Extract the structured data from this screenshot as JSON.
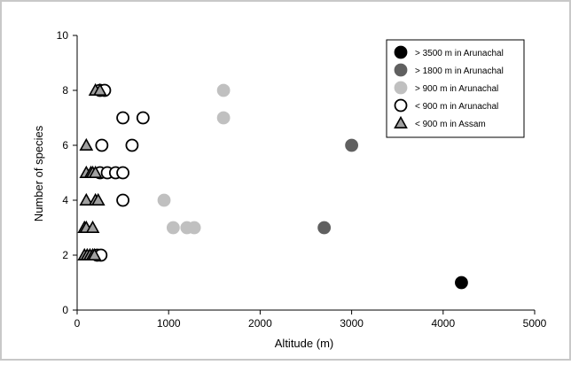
{
  "chart_data": {
    "type": "scatter",
    "title": "",
    "xlabel": "Altitude (m)",
    "ylabel": "Number of species",
    "xlim": [
      0,
      5000
    ],
    "ylim": [
      0,
      10
    ],
    "xticks": [
      0,
      1000,
      2000,
      3000,
      4000,
      5000
    ],
    "yticks": [
      0,
      2,
      4,
      6,
      8,
      10
    ],
    "grid": false,
    "legend_position": "top-right",
    "series": [
      {
        "name": "> 3500 m in Arunachal",
        "marker": "circle",
        "fill": "#000000",
        "stroke": "#000000",
        "points": [
          [
            4200,
            1
          ]
        ]
      },
      {
        "name": "> 1800 m in Arunachal",
        "marker": "circle",
        "fill": "#606060",
        "stroke": "#606060",
        "points": [
          [
            3000,
            6
          ],
          [
            2700,
            3
          ]
        ]
      },
      {
        "name": ">  900 m in Arunachal",
        "marker": "circle",
        "fill": "#c0c0c0",
        "stroke": "#c0c0c0",
        "points": [
          [
            1600,
            8
          ],
          [
            1600,
            7
          ],
          [
            950,
            4
          ],
          [
            1050,
            3
          ],
          [
            1200,
            3
          ],
          [
            1280,
            3
          ]
        ]
      },
      {
        "name": "<  900 m in Arunachal",
        "marker": "circle",
        "fill": "#ffffff",
        "stroke": "#000000",
        "points": [
          [
            250,
            8
          ],
          [
            300,
            8
          ],
          [
            500,
            7
          ],
          [
            720,
            7
          ],
          [
            600,
            6
          ],
          [
            270,
            6
          ],
          [
            250,
            5
          ],
          [
            330,
            5
          ],
          [
            420,
            5
          ],
          [
            500,
            5
          ],
          [
            500,
            4
          ],
          [
            220,
            2
          ],
          [
            260,
            2
          ]
        ]
      },
      {
        "name": "<  900 m in Assam",
        "marker": "triangle",
        "fill": "#a0a0a0",
        "stroke": "#000000",
        "points": [
          [
            200,
            8
          ],
          [
            250,
            8
          ],
          [
            100,
            6
          ],
          [
            100,
            5
          ],
          [
            150,
            5
          ],
          [
            170,
            5
          ],
          [
            200,
            5
          ],
          [
            100,
            4
          ],
          [
            200,
            4
          ],
          [
            230,
            4
          ],
          [
            80,
            3
          ],
          [
            100,
            3
          ],
          [
            170,
            3
          ],
          [
            80,
            2
          ],
          [
            110,
            2
          ],
          [
            140,
            2
          ],
          [
            170,
            2
          ],
          [
            190,
            2
          ]
        ]
      }
    ]
  }
}
